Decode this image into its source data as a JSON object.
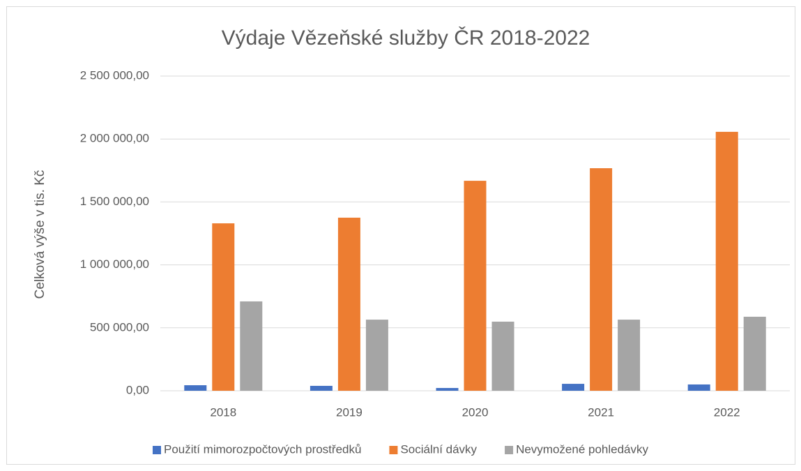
{
  "chart_data": {
    "type": "bar",
    "title": "Výdaje Vězeňské služby ČR 2018-2022",
    "y_label": "Celková výše v tis. Kč",
    "categories": [
      "2018",
      "2019",
      "2020",
      "2021",
      "2022"
    ],
    "series": [
      {
        "name": "Použití mimorozpočtových prostředků",
        "color": "#4472c4",
        "values": [
          44000,
          39000,
          22000,
          55000,
          50000
        ]
      },
      {
        "name": "Sociální dávky",
        "color": "#ed7d31",
        "values": [
          1330000,
          1375000,
          1668000,
          1768000,
          2057000
        ]
      },
      {
        "name": "Nevymožené pohledávky",
        "color": "#a5a5a5",
        "values": [
          710000,
          565000,
          549000,
          565000,
          588000
        ]
      }
    ],
    "ylim": [
      0,
      2500000
    ],
    "yticks": [
      {
        "value": 0,
        "label": "0,00"
      },
      {
        "value": 500000,
        "label": "500 000,00"
      },
      {
        "value": 1000000,
        "label": "1 000 000,00"
      },
      {
        "value": 1500000,
        "label": "1 500 000,00"
      },
      {
        "value": 2000000,
        "label": "2 000 000,00"
      },
      {
        "value": 2500000,
        "label": "2 500 000,00"
      }
    ],
    "grid": true,
    "legend": "bottom"
  }
}
